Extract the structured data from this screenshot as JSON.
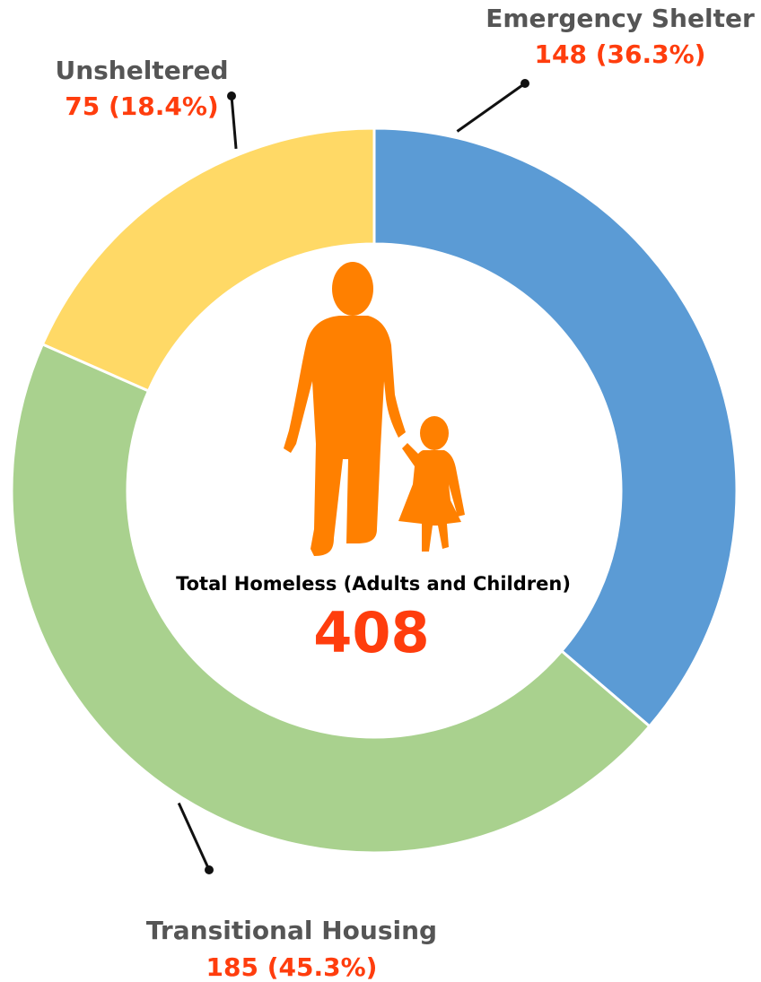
{
  "chart_data": {
    "type": "pie",
    "variant": "donut",
    "categories": [
      "Emergency Shelter",
      "Transitional Housing",
      "Unsheltered"
    ],
    "values": [
      148,
      185,
      75
    ],
    "value_labels": [
      "148 (36.3%)",
      "185 (45.3%)",
      "75 (18.4%)"
    ],
    "percentages": [
      36.3,
      45.3,
      18.4
    ],
    "colors": [
      "#5b9bd5",
      "#a9d18e",
      "#ffd966"
    ],
    "center_title": "Total Homeless (Adults and Children)",
    "center_total": "408",
    "icon": "adult-and-child-walking-icon",
    "icon_color": "#ff8000",
    "value_color": "#ff3d0d",
    "label_color": "#555555"
  }
}
